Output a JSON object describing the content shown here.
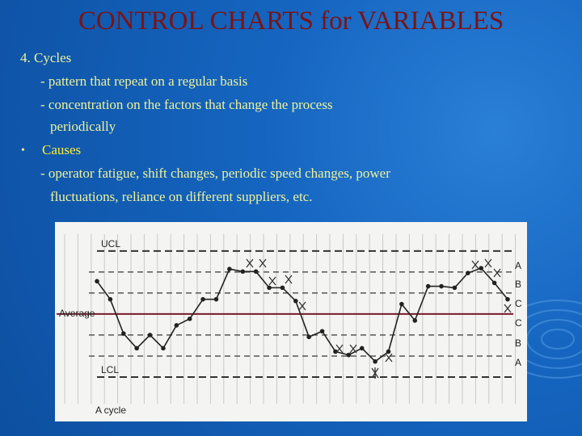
{
  "slide": {
    "title": "CONTROL CHARTS for VARIABLES",
    "lines": [
      "4. Cycles",
      "- pattern that repeat on a regular basis",
      "- concentration on the factors that change the process",
      "periodically"
    ],
    "bullet": "•",
    "bullet_text": "Causes",
    "bullet_lines": [
      "- operator fatigue, shift changes, periodic speed changes, power",
      "fluctuations, reliance on different suppliers, etc."
    ]
  },
  "chart_data": {
    "type": "line",
    "caption": "A cycle",
    "values": [
      1.56,
      0.7,
      -0.93,
      -1.63,
      -1.0,
      -1.63,
      -0.54,
      -0.23,
      0.7,
      0.7,
      2.14,
      2.02,
      2.02,
      1.25,
      1.25,
      0.62,
      -1.09,
      -0.82,
      -1.79,
      -1.95,
      -1.63,
      -2.26,
      -1.79,
      0.47,
      -0.31,
      1.32,
      1.32,
      1.25,
      1.95,
      2.18,
      1.48,
      0.7
    ],
    "color": "#222222",
    "ylim": [
      -4,
      3.8
    ],
    "yticks": [
      {
        "value": 3,
        "label": "UCL"
      },
      {
        "value": 0,
        "label": "Average"
      },
      {
        "value": -3,
        "label": "LCL"
      }
    ],
    "zone_lines": [
      2,
      1,
      -1,
      -2
    ],
    "zone_labels": [
      "A",
      "B",
      "C",
      "C",
      "B",
      "A"
    ],
    "grid": true
  }
}
